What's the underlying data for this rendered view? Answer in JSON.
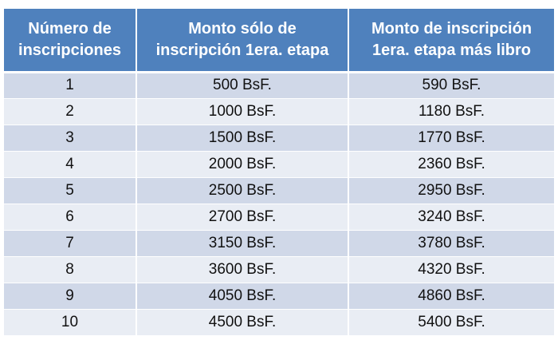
{
  "table": {
    "headers": [
      [
        "Número de",
        "inscripciones"
      ],
      [
        "Monto sólo de",
        "inscripción 1era. etapa"
      ],
      [
        "Monto de inscripción",
        "1era. etapa más libro"
      ]
    ],
    "rows": [
      [
        "1",
        "500 BsF.",
        "590 BsF."
      ],
      [
        "2",
        "1000 BsF.",
        "1180 BsF."
      ],
      [
        "3",
        "1500 BsF.",
        "1770 BsF."
      ],
      [
        "4",
        "2000 BsF.",
        "2360 BsF."
      ],
      [
        "5",
        "2500 BsF.",
        "2950 BsF."
      ],
      [
        "6",
        "2700 BsF.",
        "3240 BsF."
      ],
      [
        "7",
        "3150 BsF.",
        "3780 BsF."
      ],
      [
        "8",
        "3600 BsF.",
        "4320 BsF."
      ],
      [
        "9",
        "4050 BsF.",
        "4860 BsF."
      ],
      [
        "10",
        "4500 BsF.",
        "5400 BsF."
      ]
    ]
  },
  "colors": {
    "header_bg": "#4f81bd",
    "header_text": "#ffffff",
    "row_odd_bg": "#d0d8e8",
    "row_even_bg": "#e9edf4",
    "cell_text": "#111111"
  }
}
